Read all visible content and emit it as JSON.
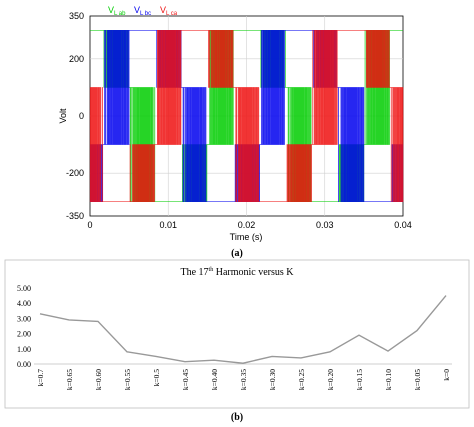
{
  "chart_data": [
    {
      "type": "line",
      "xlabel": "Time (s)",
      "ylabel": "Volt",
      "xlim": [
        0,
        0.04
      ],
      "ylim": [
        -350,
        350
      ],
      "x_ticks": [
        "0",
        "0.01",
        "0.02",
        "0.03",
        "0.04"
      ],
      "y_ticks": [
        "350",
        "200",
        "0",
        "-200",
        "-350"
      ],
      "grid": true,
      "legend_position": "top-left",
      "series": [
        {
          "name": "Vₗ ab",
          "legend_main": "V",
          "legend_sub": "L ab",
          "color": "#00cc00",
          "phase_deg": 0
        },
        {
          "name": "Vₗ bc",
          "legend_main": "V",
          "legend_sub": "L bc",
          "color": "#0000ee",
          "phase_deg": -120
        },
        {
          "name": "Vₗ ca",
          "legend_main": "V",
          "legend_sub": "L ca",
          "color": "#ee1111",
          "phase_deg": 120
        }
      ],
      "levels": [
        300,
        100,
        -100,
        -300
      ],
      "fundamental_hz": 50,
      "caption": "(a)"
    },
    {
      "type": "line",
      "title_main": "The 17",
      "title_sup": "th",
      "title_rest": " Harmonic versus K",
      "categories": [
        "k=0.7",
        "k=0.65",
        "k=0.60",
        "k=0.55",
        "k=0.5",
        "k=0.45",
        "k=0.40",
        "k=0.35",
        "k=0.30",
        "k=0.25",
        "k=0.20",
        "k=0.15",
        "k=0.10",
        "k=0.05",
        "k=0"
      ],
      "values": [
        3.3,
        2.9,
        2.8,
        0.8,
        0.5,
        0.15,
        0.25,
        0.05,
        0.5,
        0.4,
        0.8,
        1.9,
        0.85,
        2.2,
        4.5
      ],
      "ylim": [
        0,
        5
      ],
      "y_ticks": [
        "0.00",
        "1.00",
        "2.00",
        "3.00",
        "4.00",
        "5.00"
      ],
      "color": "#999999",
      "grid": false,
      "caption": "(b)"
    }
  ]
}
